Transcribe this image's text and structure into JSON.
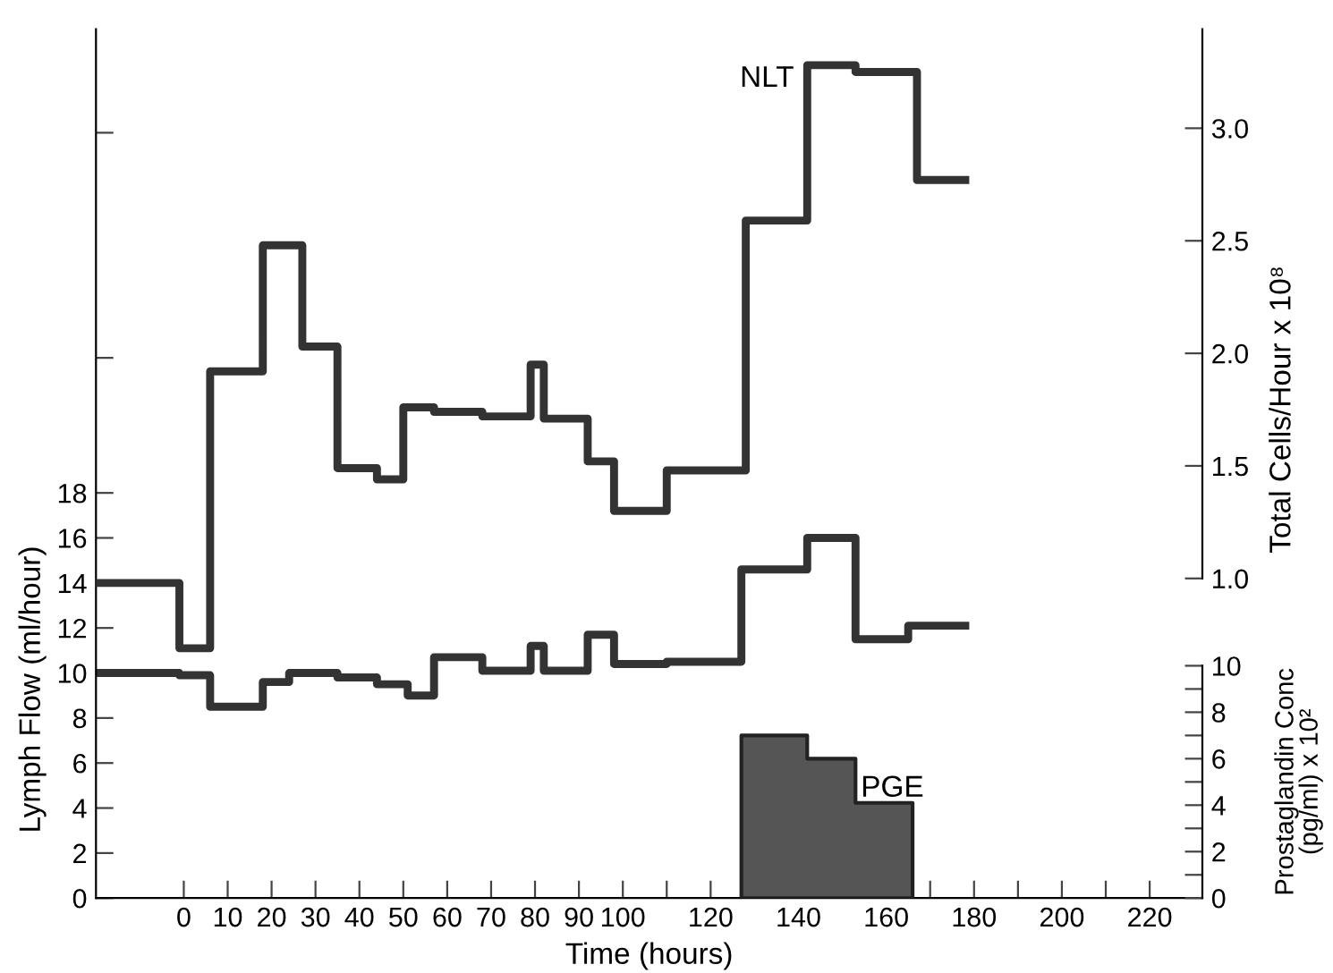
{
  "chart_data": {
    "type": "step",
    "xlabel": "Time (hours)",
    "ylabel": "Lymph Flow (ml/hour)",
    "y2label": "Total Cells/Hour x 10⁸",
    "y3label": "Prostaglandin Conc\n(pg/ml) x 10²",
    "xlim": [
      -20,
      232
    ],
    "xticks": [
      0,
      10,
      20,
      30,
      40,
      50,
      60,
      70,
      80,
      90,
      100,
      {
        "value": 110,
        "label": null
      },
      120,
      {
        "value": 130,
        "label": null
      },
      140,
      {
        "value": 150,
        "label": null
      },
      160,
      {
        "value": 170,
        "label": null
      },
      180,
      {
        "value": 190,
        "label": null
      },
      200,
      {
        "value": 210,
        "label": null
      },
      220
    ],
    "ylim": [
      0,
      38.6
    ],
    "yticks": [
      0,
      2,
      4,
      6,
      8,
      10,
      12,
      14,
      16,
      18,
      {
        "value": 24,
        "label": null
      },
      {
        "value": 34,
        "label": null
      }
    ],
    "y2lim": [
      -0.42,
      3.44
    ],
    "y2ticks": [
      {
        "value": 1.0,
        "label": "1.0"
      },
      {
        "value": 1.5,
        "label": "1.5"
      },
      {
        "value": 2.0,
        "label": "2.0"
      },
      {
        "value": 2.5,
        "label": "2.5"
      },
      {
        "value": 3.0,
        "label": "3.0"
      }
    ],
    "y3lim": [
      0,
      37.4
    ],
    "y3ticks": [
      0,
      {
        "value": 1,
        "label": null
      },
      2,
      {
        "value": 3,
        "label": null
      },
      4,
      {
        "value": 5,
        "label": null
      },
      6,
      {
        "value": 7,
        "label": null
      },
      8,
      {
        "value": 9,
        "label": null
      },
      10
    ],
    "grid": false,
    "legend": false,
    "series": [
      {
        "type": "step",
        "name": "NLT",
        "axis": "y2",
        "color": "#333333",
        "x": [
          -20,
          -1,
          6,
          18,
          27,
          35,
          44,
          50,
          57,
          68,
          79,
          82,
          92,
          98,
          110,
          128,
          142,
          153,
          167,
          178
        ],
        "values": [
          0.98,
          0.69,
          1.92,
          2.48,
          2.03,
          1.49,
          1.44,
          1.76,
          1.74,
          1.72,
          1.95,
          1.71,
          1.52,
          1.3,
          1.48,
          2.59,
          3.28,
          3.25,
          2.77,
          2.77
        ]
      },
      {
        "axis": "y",
        "color": "#333333",
        "x": [
          -20,
          -1,
          6,
          18,
          24,
          35,
          44,
          51,
          57,
          68,
          79,
          82,
          92,
          98,
          110,
          127,
          142,
          153,
          165,
          178
        ],
        "values": [
          10.0,
          9.9,
          8.5,
          9.6,
          10.0,
          9.8,
          9.5,
          9.0,
          10.7,
          10.1,
          11.2,
          10.1,
          11.7,
          10.4,
          10.5,
          14.6,
          16.0,
          11.5,
          12.1,
          12.1
        ]
      },
      {
        "type": "area",
        "name": "PGE",
        "axis": "y3",
        "color": "#555555",
        "x": [
          127,
          142,
          153,
          166
        ],
        "values": [
          7.0,
          6.0,
          4.1,
          4.1
        ]
      }
    ]
  }
}
